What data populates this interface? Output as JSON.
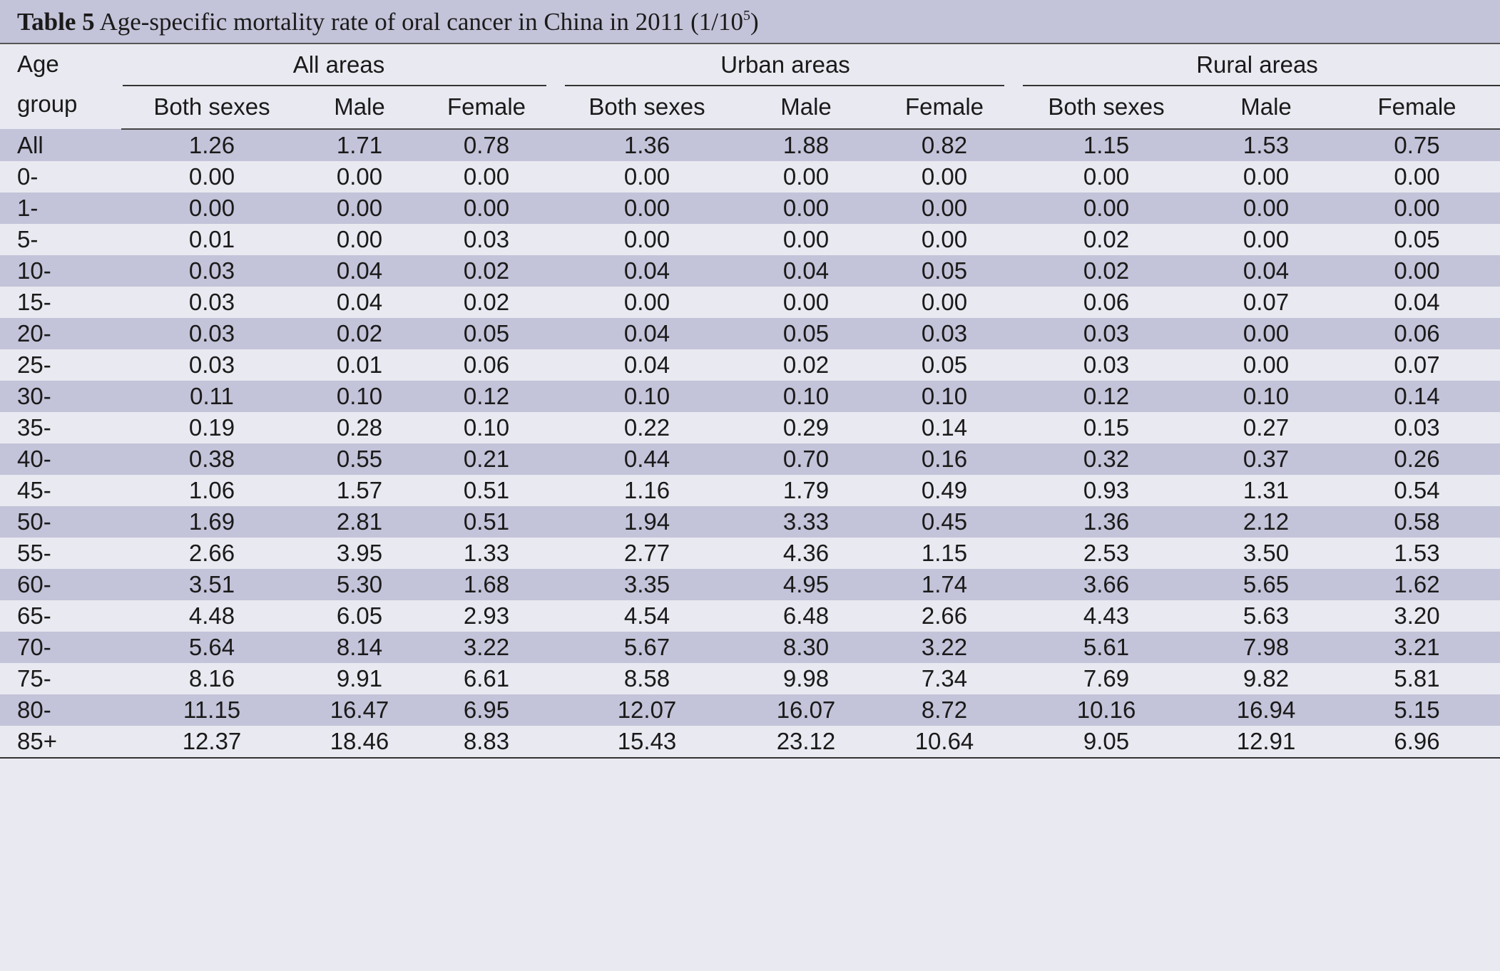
{
  "caption": {
    "label": "Table 5",
    "text": "Age-specific mortality rate of oral cancer in China in 2011 (1/10",
    "superscript": "5",
    "close": ")"
  },
  "header": {
    "age_line1": "Age",
    "age_line2": "group",
    "groups": [
      "All areas",
      "Urban areas",
      "Rural areas"
    ],
    "subs": [
      "Both sexes",
      "Male",
      "Female"
    ]
  },
  "rows": [
    {
      "age": "All",
      "vals": [
        "1.26",
        "1.71",
        "0.78",
        "1.36",
        "1.88",
        "0.82",
        "1.15",
        "1.53",
        "0.75"
      ]
    },
    {
      "age": "0-",
      "vals": [
        "0.00",
        "0.00",
        "0.00",
        "0.00",
        "0.00",
        "0.00",
        "0.00",
        "0.00",
        "0.00"
      ]
    },
    {
      "age": "1-",
      "vals": [
        "0.00",
        "0.00",
        "0.00",
        "0.00",
        "0.00",
        "0.00",
        "0.00",
        "0.00",
        "0.00"
      ]
    },
    {
      "age": "5-",
      "vals": [
        "0.01",
        "0.00",
        "0.03",
        "0.00",
        "0.00",
        "0.00",
        "0.02",
        "0.00",
        "0.05"
      ]
    },
    {
      "age": "10-",
      "vals": [
        "0.03",
        "0.04",
        "0.02",
        "0.04",
        "0.04",
        "0.05",
        "0.02",
        "0.04",
        "0.00"
      ]
    },
    {
      "age": "15-",
      "vals": [
        "0.03",
        "0.04",
        "0.02",
        "0.00",
        "0.00",
        "0.00",
        "0.06",
        "0.07",
        "0.04"
      ]
    },
    {
      "age": "20-",
      "vals": [
        "0.03",
        "0.02",
        "0.05",
        "0.04",
        "0.05",
        "0.03",
        "0.03",
        "0.00",
        "0.06"
      ]
    },
    {
      "age": "25-",
      "vals": [
        "0.03",
        "0.01",
        "0.06",
        "0.04",
        "0.02",
        "0.05",
        "0.03",
        "0.00",
        "0.07"
      ]
    },
    {
      "age": "30-",
      "vals": [
        "0.11",
        "0.10",
        "0.12",
        "0.10",
        "0.10",
        "0.10",
        "0.12",
        "0.10",
        "0.14"
      ]
    },
    {
      "age": "35-",
      "vals": [
        "0.19",
        "0.28",
        "0.10",
        "0.22",
        "0.29",
        "0.14",
        "0.15",
        "0.27",
        "0.03"
      ]
    },
    {
      "age": "40-",
      "vals": [
        "0.38",
        "0.55",
        "0.21",
        "0.44",
        "0.70",
        "0.16",
        "0.32",
        "0.37",
        "0.26"
      ]
    },
    {
      "age": "45-",
      "vals": [
        "1.06",
        "1.57",
        "0.51",
        "1.16",
        "1.79",
        "0.49",
        "0.93",
        "1.31",
        "0.54"
      ]
    },
    {
      "age": "50-",
      "vals": [
        "1.69",
        "2.81",
        "0.51",
        "1.94",
        "3.33",
        "0.45",
        "1.36",
        "2.12",
        "0.58"
      ]
    },
    {
      "age": "55-",
      "vals": [
        "2.66",
        "3.95",
        "1.33",
        "2.77",
        "4.36",
        "1.15",
        "2.53",
        "3.50",
        "1.53"
      ]
    },
    {
      "age": "60-",
      "vals": [
        "3.51",
        "5.30",
        "1.68",
        "3.35",
        "4.95",
        "1.74",
        "3.66",
        "5.65",
        "1.62"
      ]
    },
    {
      "age": "65-",
      "vals": [
        "4.48",
        "6.05",
        "2.93",
        "4.54",
        "6.48",
        "2.66",
        "4.43",
        "5.63",
        "3.20"
      ]
    },
    {
      "age": "70-",
      "vals": [
        "5.64",
        "8.14",
        "3.22",
        "5.67",
        "8.30",
        "3.22",
        "5.61",
        "7.98",
        "3.21"
      ]
    },
    {
      "age": "75-",
      "vals": [
        "8.16",
        "9.91",
        "6.61",
        "8.58",
        "9.98",
        "7.34",
        "7.69",
        "9.82",
        "5.81"
      ]
    },
    {
      "age": "80-",
      "vals": [
        "11.15",
        "16.47",
        "6.95",
        "12.07",
        "16.07",
        "8.72",
        "10.16",
        "16.94",
        "5.15"
      ]
    },
    {
      "age": "85+",
      "vals": [
        "12.37",
        "18.46",
        "8.83",
        "15.43",
        "23.12",
        "10.64",
        "9.05",
        "12.91",
        "6.96"
      ]
    }
  ],
  "colors": {
    "band_dark": "#c3c3d9",
    "band_light": "#e9e9f1",
    "rule": "#333333"
  }
}
